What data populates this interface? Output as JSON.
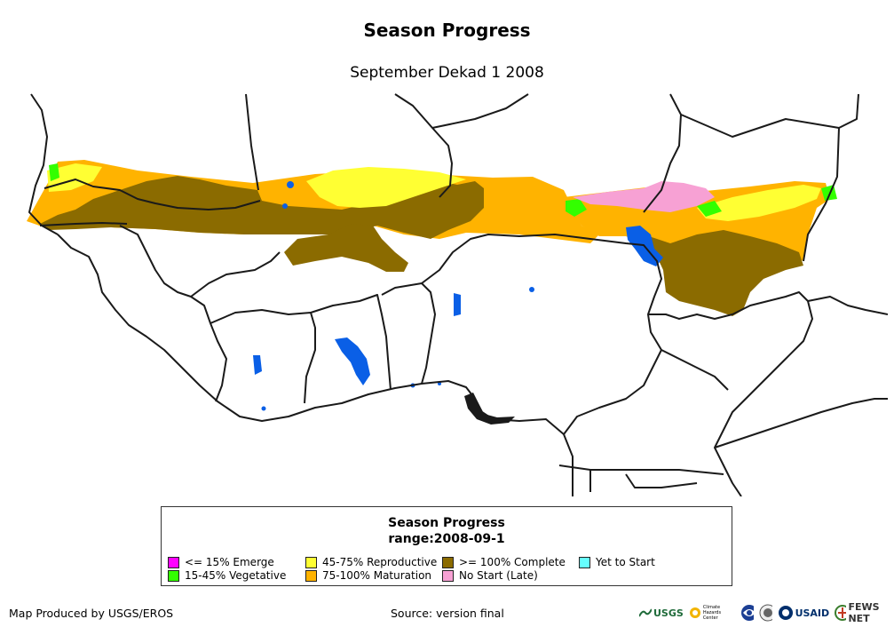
{
  "title": "Season Progress",
  "subtitle": "September Dekad 1 2008",
  "legend": {
    "title": "Season Progress",
    "range": "range:2008-09-1",
    "items": [
      {
        "label": "<= 15% Emerge",
        "color": "#ff00ff"
      },
      {
        "label": "15-45% Vegetative",
        "color": "#33ff00"
      },
      {
        "label": "45-75% Reproductive",
        "color": "#ffff33"
      },
      {
        "label": "75-100% Maturation",
        "color": "#ffb300"
      },
      {
        "label": ">= 100% Complete",
        "color": "#8b6b00"
      },
      {
        "label": "No Start (Late)",
        "color": "#f7a1d4"
      },
      {
        "label": "Yet to Start",
        "color": "#66ffff"
      }
    ]
  },
  "footer": {
    "credit": "Map Produced by USGS/EROS",
    "source": "Source: version final"
  },
  "logos": {
    "usgs": "USGS",
    "chc": "Climate Hazards Center",
    "usaid": "USAID",
    "fews": "FEWS NET"
  },
  "colors": {
    "water": "#0a5fe6",
    "border": "#1a1a1a"
  }
}
